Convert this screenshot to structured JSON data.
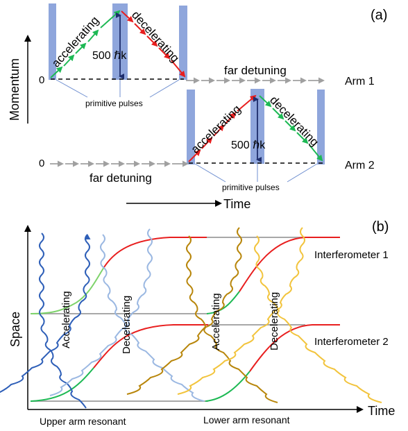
{
  "panel_a": {
    "tag": "(a)",
    "ylabel": "Momentum",
    "xlabel": "Time",
    "zero_top": "0",
    "zero_bottom": "0",
    "arm1_label": "Arm 1",
    "arm2_label": "Arm 2",
    "top": {
      "accelerating": "accelerating",
      "decelerating": "decelerating",
      "momentum": "500 ℏk",
      "far_detuning": "far detuning",
      "primitive_pulses": "primitive pulses"
    },
    "bottom": {
      "accelerating": "accelerating",
      "decelerating": "decelerating",
      "momentum": "500 ℏk",
      "far_detuning": "far detuning",
      "primitive_pulses": "primitive pulses"
    }
  },
  "panel_b": {
    "tag": "(b)",
    "ylabel": "Space",
    "xlabel": "Time",
    "interferometer1": "Interferometer 1",
    "interferometer2": "Interferometer 2",
    "accelerating_left": "Accelerating",
    "decelerating_left": "Decelerating",
    "accelerating_right": "Accelerating",
    "decelerating_right": "Decelerating",
    "upper_arm": "Upper arm resonant",
    "lower_arm": "Lower arm resonant"
  },
  "colors": {
    "pulse_bar": "#8FA6DC",
    "accel": "#1DB954",
    "decel": "#E81E1E",
    "arrow_gray": "#A0A0A0",
    "wave_blue_dark": "#2E5FB8",
    "wave_blue_light": "#8EB0E0",
    "wave_gold": "#B8860B",
    "wave_yellow": "#F2C43D"
  }
}
